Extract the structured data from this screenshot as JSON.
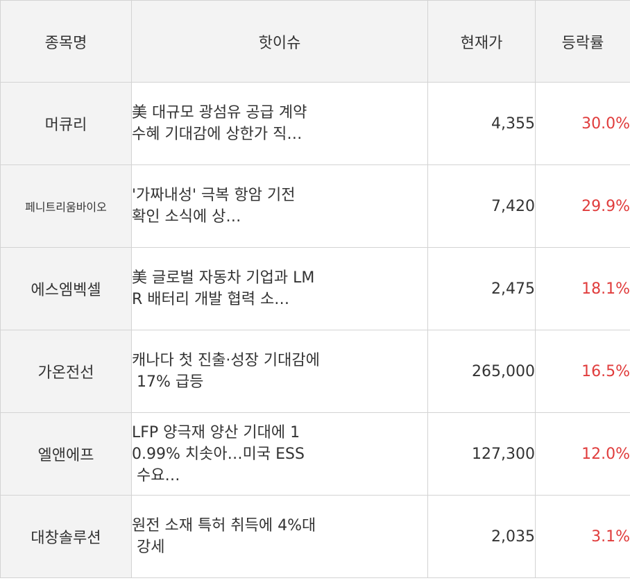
{
  "table": {
    "headers": {
      "name": "종목명",
      "issue": "핫이슈",
      "price": "현재가",
      "rate": "등락률"
    },
    "rows": [
      {
        "name": "머큐리",
        "issue": "美 대규모 광섬유 공급 계약\n수혜 기대감에 상한가 직…",
        "price": "4,355",
        "rate": "30.0%"
      },
      {
        "name": "페니트리움바이오",
        "issue": "'가짜내성' 극복 항암 기전\n확인 소식에 상…",
        "price": "7,420",
        "rate": "29.9%"
      },
      {
        "name": "에스엠벡셀",
        "issue": "美 글로벌 자동차 기업과 LM\nR 배터리 개발 협력 소…",
        "price": "2,475",
        "rate": "18.1%"
      },
      {
        "name": "가온전선",
        "issue": "캐나다 첫 진출·성장 기대감에\n 17% 급등",
        "price": "265,000",
        "rate": "16.5%"
      },
      {
        "name": "엘앤에프",
        "issue": "LFP 양극재 양산 기대에 1\n0.99% 치솟아…미국 ESS\n 수요…",
        "price": "127,300",
        "rate": "12.0%"
      },
      {
        "name": "대창솔루션",
        "issue": "원전 소재 특허 취득에 4%대\n 강세",
        "price": "2,035",
        "rate": "3.1%"
      }
    ],
    "colors": {
      "header_bg": "#f3f3f3",
      "name_bg": "#f3f3f3",
      "border": "#d3d3d3",
      "text": "#333333",
      "rate_up": "#e03c3c"
    }
  }
}
